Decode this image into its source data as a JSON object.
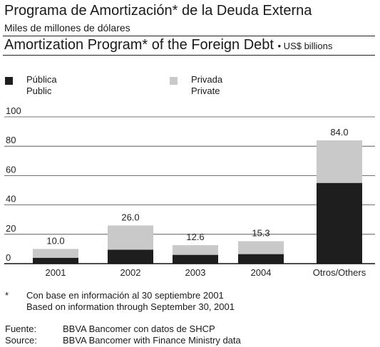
{
  "header": {
    "title_es": "Programa de Amortización* de la Deuda Externa",
    "subtitle_es": "Miles de millones de dólares",
    "title_en": "Amortization Program* of the Foreign Debt",
    "unit_en": "• US$ billions"
  },
  "legend": {
    "public_es": "Pública",
    "public_en": "Public",
    "private_es": "Privada",
    "private_en": "Private"
  },
  "colors": {
    "public": "#1e1e1e",
    "private": "#c9c9c9"
  },
  "chart_data": {
    "type": "bar",
    "stacked": true,
    "categories": [
      "2001",
      "2002",
      "2003",
      "2004",
      "Otros/Others"
    ],
    "series": [
      {
        "name": "Pública / Public",
        "values": [
          4.0,
          9.5,
          6.0,
          6.5,
          55.0
        ]
      },
      {
        "name": "Privada / Private",
        "values": [
          6.0,
          16.5,
          6.6,
          8.8,
          29.0
        ]
      }
    ],
    "totals": [
      "10.0",
      "26.0",
      "12.6",
      "15.3",
      "84.0"
    ],
    "y_ticks": [
      "100",
      "80",
      "60",
      "40",
      "20",
      "0"
    ],
    "ylim": [
      0,
      100
    ],
    "grid": true
  },
  "notes": {
    "mark": "*",
    "note_es": "Con base en información al 30 septiembre 2001",
    "note_en": "Based on information through September 30, 2001",
    "source_label_es": "Fuente:",
    "source_label_en": "Source:",
    "source_es": "BBVA Bancomer con datos de SHCP",
    "source_en": "BBVA Bancomer with Finance Ministry data"
  }
}
